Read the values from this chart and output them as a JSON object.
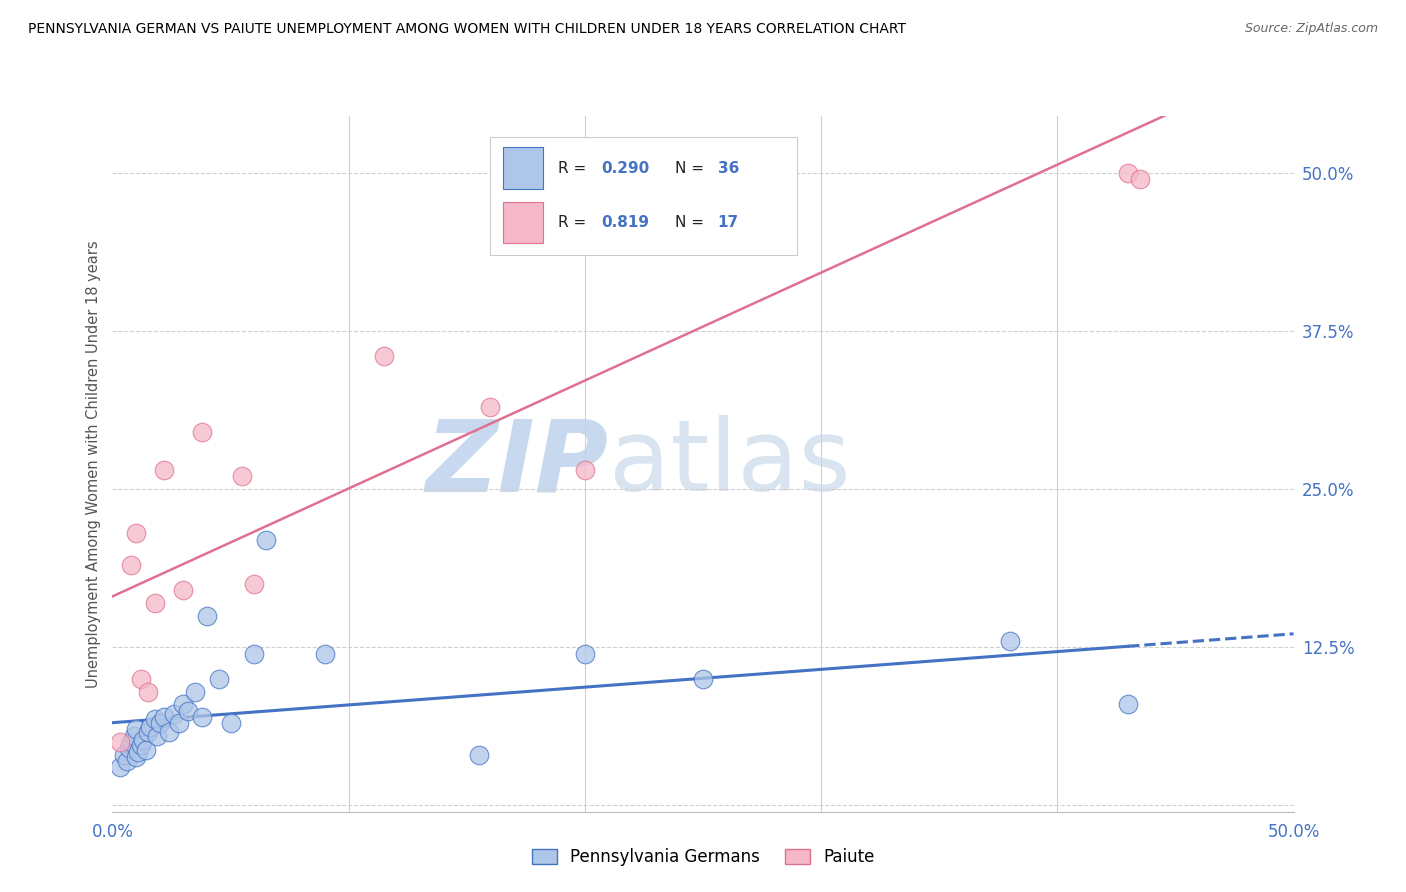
{
  "title": "PENNSYLVANIA GERMAN VS PAIUTE UNEMPLOYMENT AMONG WOMEN WITH CHILDREN UNDER 18 YEARS CORRELATION CHART",
  "source": "Source: ZipAtlas.com",
  "ylabel": "Unemployment Among Women with Children Under 18 years",
  "xlim": [
    0.0,
    0.5
  ],
  "ylim": [
    -0.005,
    0.545
  ],
  "color_blue": "#aec6e8",
  "color_pink": "#f4b8c8",
  "line_blue": "#4472c4",
  "line_pink": "#e07090",
  "watermark_zip": "ZIP",
  "watermark_atlas": "atlas",
  "legend_r1": "0.290",
  "legend_n1": "36",
  "legend_r2": "0.819",
  "legend_n2": "17",
  "pa_german_x": [
    0.003,
    0.005,
    0.006,
    0.007,
    0.008,
    0.009,
    0.01,
    0.01,
    0.011,
    0.012,
    0.013,
    0.014,
    0.015,
    0.016,
    0.018,
    0.019,
    0.02,
    0.022,
    0.024,
    0.026,
    0.028,
    0.03,
    0.032,
    0.035,
    0.038,
    0.04,
    0.045,
    0.05,
    0.06,
    0.065,
    0.09,
    0.155,
    0.2,
    0.25,
    0.38,
    0.43
  ],
  "pa_german_y": [
    0.03,
    0.04,
    0.035,
    0.045,
    0.05,
    0.055,
    0.038,
    0.06,
    0.042,
    0.048,
    0.052,
    0.044,
    0.058,
    0.062,
    0.068,
    0.055,
    0.065,
    0.07,
    0.058,
    0.072,
    0.065,
    0.08,
    0.075,
    0.09,
    0.07,
    0.15,
    0.1,
    0.065,
    0.12,
    0.21,
    0.12,
    0.04,
    0.12,
    0.1,
    0.13,
    0.08
  ],
  "paiute_x": [
    0.003,
    0.008,
    0.01,
    0.012,
    0.015,
    0.018,
    0.022,
    0.03,
    0.038,
    0.055,
    0.06,
    0.115,
    0.16,
    0.2,
    0.26,
    0.43,
    0.435
  ],
  "paiute_y": [
    0.05,
    0.19,
    0.215,
    0.1,
    0.09,
    0.16,
    0.265,
    0.17,
    0.295,
    0.26,
    0.175,
    0.355,
    0.315,
    0.265,
    0.505,
    0.5,
    0.495
  ]
}
